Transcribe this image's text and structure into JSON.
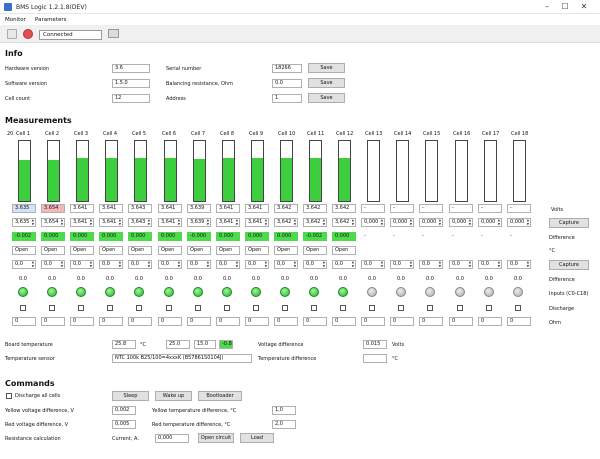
{
  "window": {
    "title": "BMS Logic 1.2.1.8(DEV)"
  },
  "menu": [
    "Monitor",
    "Parameters"
  ],
  "toolbar": {
    "status": "Connected"
  },
  "info": {
    "title": "Info",
    "hw_label": "Hardware version",
    "hw_value": "3.6",
    "sw_label": "Software version",
    "sw_value": "1.5.0",
    "cell_count_label": "Cell count",
    "cell_count_value": "12",
    "serial_label": "Serial number",
    "serial_value": "18266",
    "balance_label": "Balancing resistance, Ohm",
    "balance_value": "0.0",
    "address_label": "Address",
    "address_value": "1",
    "save": "Save"
  },
  "measurements": {
    "title": "Measurements",
    "index_label": "20",
    "cells": [
      "Cell 1",
      "Cell 2",
      "Cell 3",
      "Cell 4",
      "Cell 5",
      "Cell 6",
      "Cell 7",
      "Cell 8",
      "Cell 9",
      "Cell 10",
      "Cell 11",
      "Cell 12",
      "Cell 13",
      "Cell 14",
      "Cell 15",
      "Cell 16",
      "Cell 17",
      "Cell 18"
    ],
    "levels": [
      0.68,
      0.68,
      0.72,
      0.72,
      0.72,
      0.72,
      0.7,
      0.72,
      0.72,
      0.72,
      0.72,
      0.72,
      0,
      0,
      0,
      0,
      0,
      0
    ],
    "volts": [
      "3.635",
      "3.654",
      "3.641",
      "3.641",
      "3.643",
      "3.641",
      "3.639",
      "3.641",
      "3.641",
      "3.642",
      "3.642",
      "3.642",
      "-",
      "-",
      "-",
      "-",
      "-",
      "-"
    ],
    "thr": [
      "3,635",
      "3,654",
      "3,641",
      "3,641",
      "3,643",
      "3,641",
      "3,639",
      "3,641",
      "3,641",
      "3,642",
      "3,642",
      "3,642",
      "0,000",
      "0,000",
      "0,000",
      "0,000",
      "0,000",
      "0,000"
    ],
    "diff": [
      "-0.002",
      "0.000",
      "0.000",
      "0.000",
      "0.000",
      "0.000",
      "-0.000",
      "0.000",
      "0.000",
      "0.000",
      "-0.002",
      "0.000",
      "-",
      "-",
      "-",
      "-",
      "-",
      "-"
    ],
    "open_label": "Open",
    "temp_values": [
      "0,0",
      "0,0",
      "0,0",
      "0,0",
      "0,0",
      "0,0",
      "0,0",
      "0,0",
      "0,0",
      "0,0",
      "0,0",
      "0,0",
      "0,0",
      "0,0",
      "0,0",
      "0,0",
      "0,0",
      "0,0"
    ],
    "temp_diff": [
      "0.0",
      "0.0",
      "0.0",
      "0.0",
      "0.0",
      "0.0",
      "0.0",
      "0.0",
      "0.0",
      "0.0",
      "0.0",
      "0.0",
      "0.0",
      "0.0",
      "0.0",
      "0.0",
      "0.0",
      "0.0"
    ],
    "ohm_values": [
      "0",
      "0",
      "0",
      "0",
      "0",
      "0",
      "0",
      "0",
      "0",
      "0",
      "0",
      "0",
      "0",
      "0",
      "0",
      "0",
      "0",
      "0"
    ],
    "led_count_on": 12,
    "right": {
      "volts": "Volts",
      "capture": "Capture",
      "difference": "Difference",
      "celsius": "°C",
      "capture2": "Capture",
      "difference2": "Difference",
      "inputs": "Inputs (C0-C18)",
      "discharge": "Discharge",
      "ohm": "Ohm"
    },
    "board_temp_label": "Board temperature",
    "board_temp_value": "25.8",
    "board_temp_unit": "°C",
    "board_temp_set": "25.0",
    "board_temp_set2": "15.0",
    "board_temp_diff": "-0.8",
    "sensor_label": "Temperature sensor",
    "sensor_value": "NTC 100k B25/100=4xxxK (B57861S0104J)",
    "vdiff_label": "Voltage difference",
    "vdiff_value": "0.015",
    "vdiff_unit": "Volts",
    "tdiff_label": "Temperature difference",
    "tdiff_unit": "°C"
  },
  "commands": {
    "title": "Commands",
    "discharge_all": "Discharge all cells",
    "sleep": "Sleep",
    "wakeup": "Wake up",
    "bootloader": "Bootloader",
    "yellow_v_label": "Yellow voltage difference, V",
    "yellow_v_value": "0,002",
    "red_v_label": "Red voltage difference, V",
    "red_v_value": "0,005",
    "yellow_t_label": "Yellow temperature difference, °C",
    "yellow_t_value": "1,0",
    "red_t_label": "Red temperature difference, °C",
    "red_t_value": "2,0",
    "resist_label": "Resistance calculation",
    "current_label": "Current, A:",
    "current_value": "0,000",
    "open_circuit": "Open circuit",
    "load": "Load"
  }
}
